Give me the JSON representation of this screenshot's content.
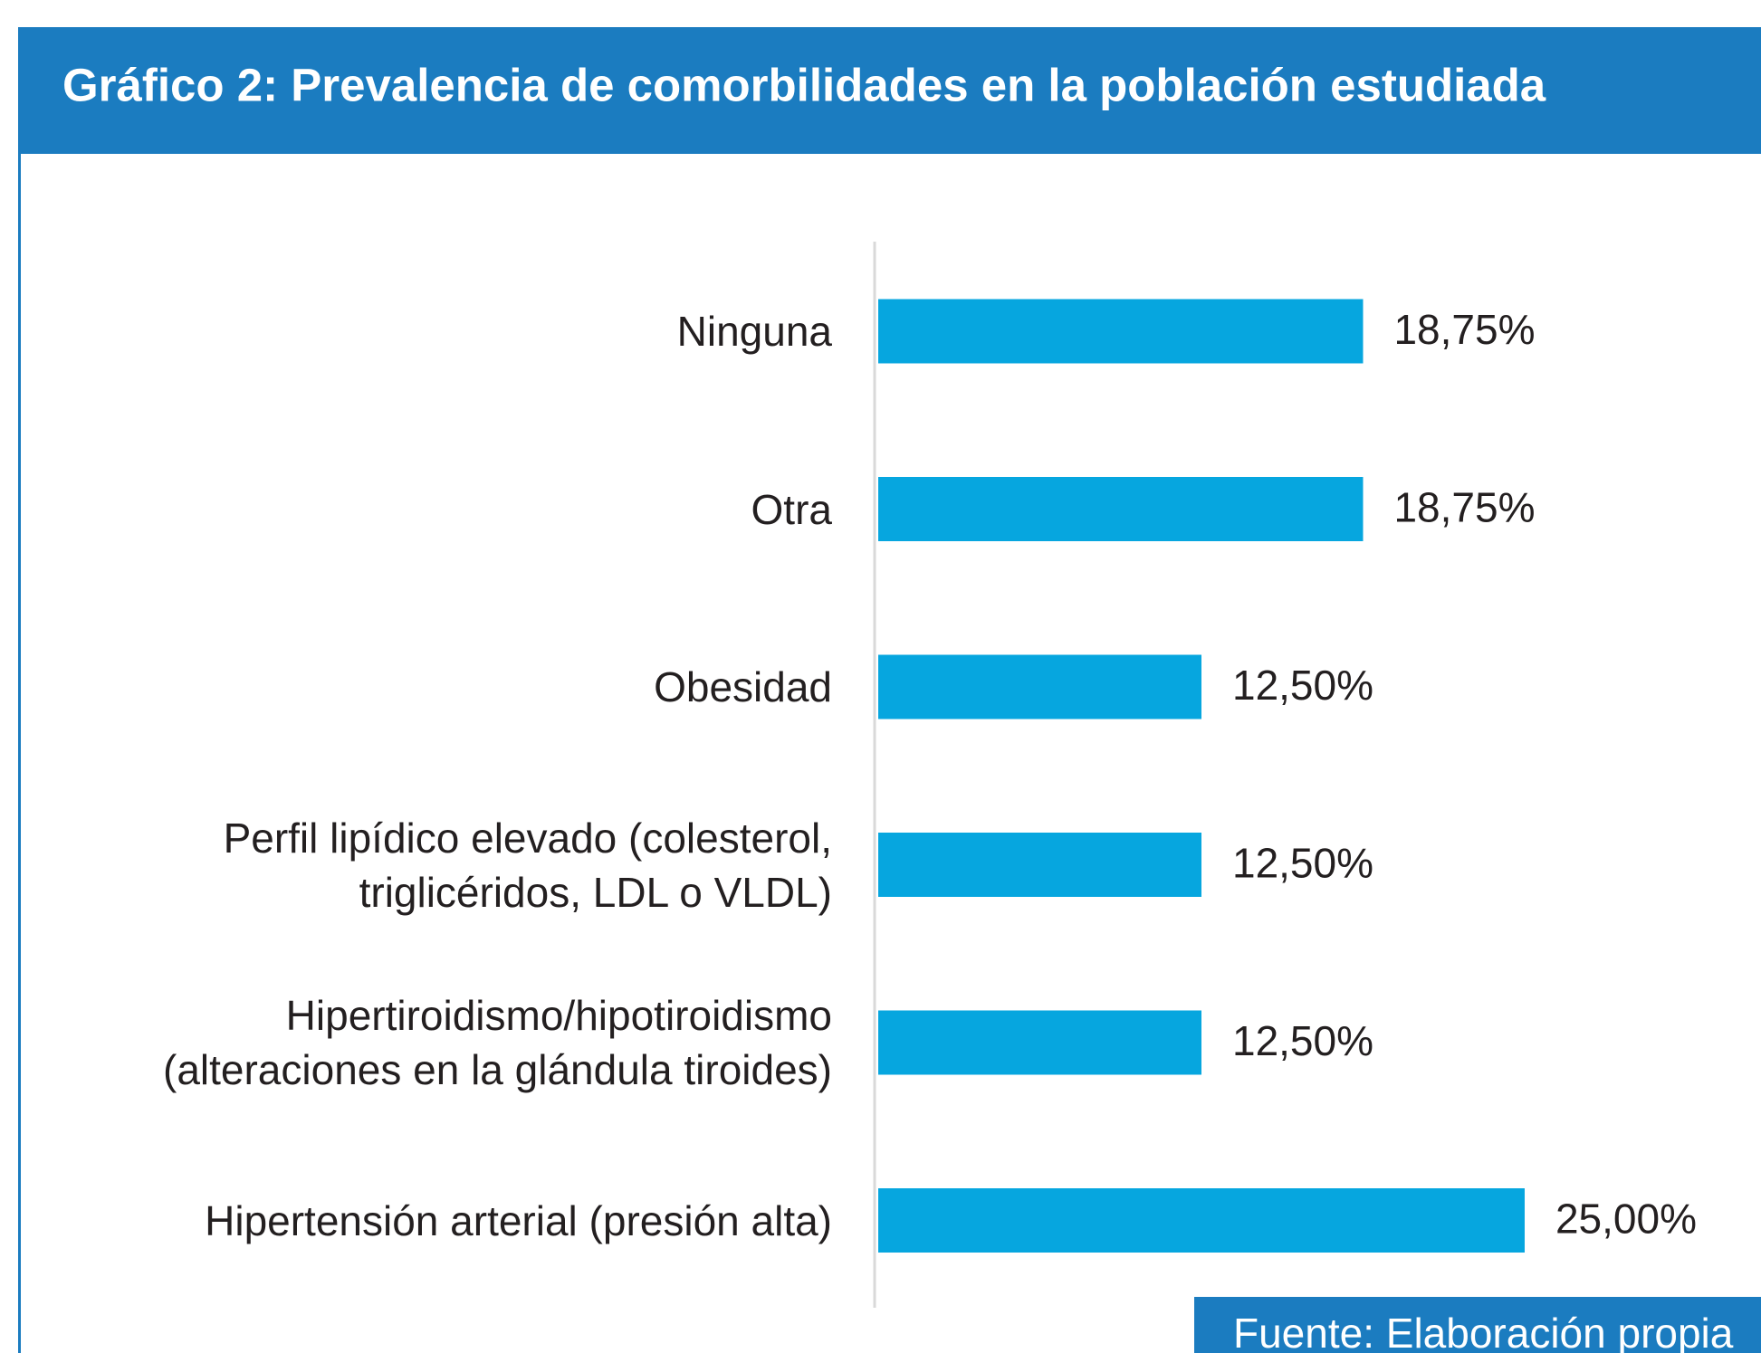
{
  "chart_data": {
    "type": "bar",
    "orientation": "horizontal",
    "title": "Gráfico 2: Prevalencia de comorbilidades en la población estudiada",
    "source": "Fuente: Elaboración propia",
    "categories": [
      "Ninguna",
      "Otra",
      "Obesidad",
      "Perfil lipídico elevado (colesterol, triglicéridos, LDL o VLDL)",
      "Hipertiroidismo/hipotiroidismo (alteraciones en la glándula tiroides)",
      "Hipertensión arterial (presión alta)"
    ],
    "values": [
      18.75,
      18.75,
      12.5,
      12.5,
      12.5,
      25
    ],
    "value_labels": [
      "18,75%",
      "18,75%",
      "12,50%",
      "12,50%",
      "12,50%",
      "25,00%"
    ],
    "color": "#06a6df",
    "header_color": "#1b7cc0",
    "xlim": [
      0,
      34
    ]
  }
}
